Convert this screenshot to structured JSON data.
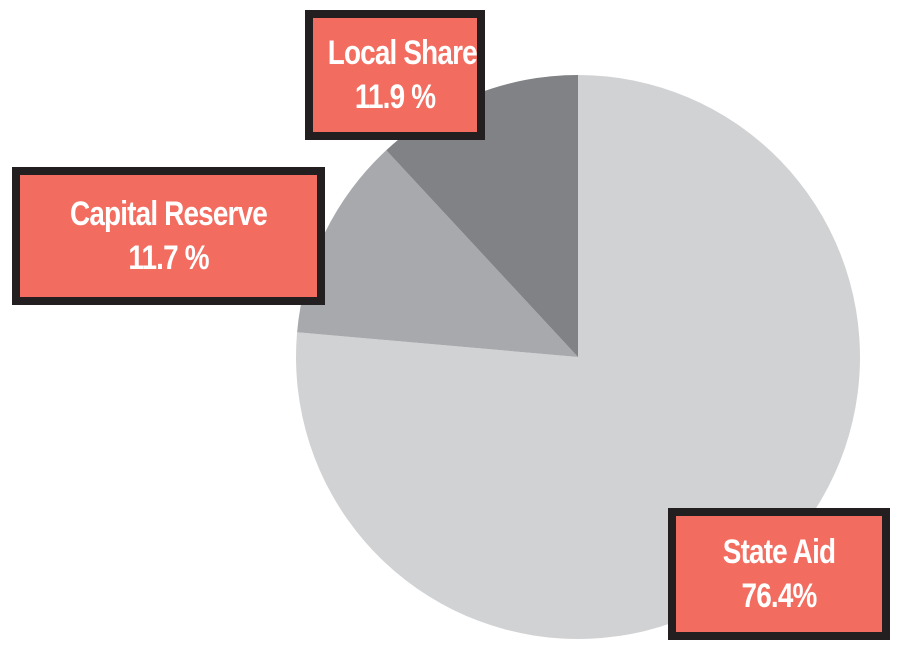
{
  "chart_data": {
    "type": "pie",
    "categories": [
      "State Aid",
      "Capital Reserve",
      "Local Share"
    ],
    "values": [
      76.4,
      11.7,
      11.9
    ],
    "value_labels": [
      "76.4%",
      "11.7 %",
      "11.9 %"
    ],
    "colors": [
      "#d1d2d4",
      "#a7a9ac",
      "#808285"
    ]
  }
}
